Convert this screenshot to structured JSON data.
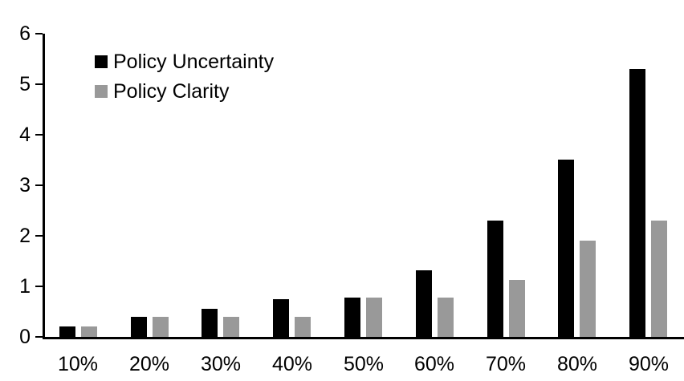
{
  "chart_data": {
    "type": "bar",
    "title": "",
    "xlabel": "",
    "ylabel": "",
    "categories": [
      "10%",
      "20%",
      "30%",
      "40%",
      "50%",
      "60%",
      "70%",
      "80%",
      "90%"
    ],
    "series": [
      {
        "name": "Policy Uncertainty",
        "color": "#000000",
        "values": [
          0.2,
          0.4,
          0.55,
          0.75,
          0.78,
          1.32,
          2.3,
          3.5,
          5.3
        ]
      },
      {
        "name": "Policy Clarity",
        "color": "#999999",
        "values": [
          0.2,
          0.4,
          0.4,
          0.4,
          0.77,
          0.77,
          1.13,
          1.9,
          2.3
        ]
      }
    ],
    "ylim": [
      0,
      6
    ],
    "yticks": [
      "0",
      "1",
      "2",
      "3",
      "4",
      "5",
      "6"
    ],
    "grid": false,
    "legend_position": "top-left-inside",
    "axis_color": "#000000",
    "background_color": "#ffffff"
  }
}
